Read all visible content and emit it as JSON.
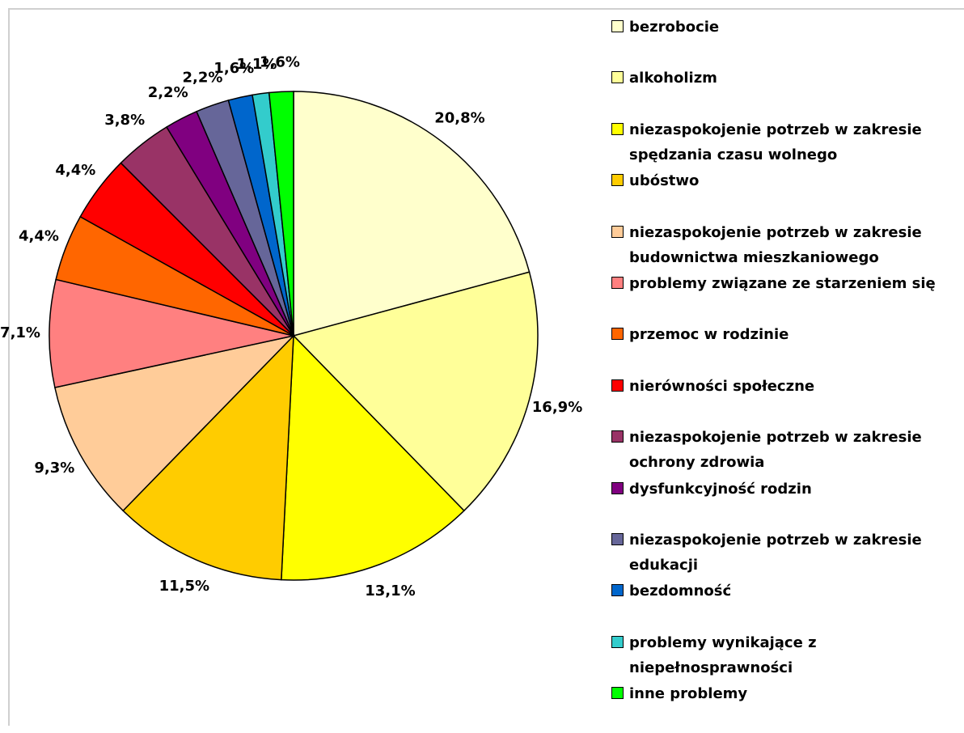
{
  "chart_data": {
    "type": "pie",
    "categories": [
      "bezrobocie",
      "alkoholizm",
      "niezaspokojenie potrzeb w zakresie spędzania czasu wolnego",
      "ubóstwo",
      "niezaspokojenie potrzeb w zakresie budownictwa mieszkaniowego",
      "problemy związane ze starzeniem się",
      "przemoc w rodzinie",
      "nierówności społeczne",
      "niezaspokojenie potrzeb w zakresie ochrony zdrowia",
      "dysfunkcyjność rodzin",
      "niezaspokojenie potrzeb w zakresie edukacji",
      "bezdomność",
      "problemy wynikające z niepełnosprawności",
      "inne problemy"
    ],
    "values": [
      20.8,
      16.9,
      13.1,
      11.5,
      9.3,
      7.1,
      4.4,
      4.4,
      3.8,
      2.2,
      2.2,
      1.6,
      1.1,
      1.6
    ],
    "value_labels": [
      "20,8%",
      "16,9%",
      "13,1%",
      "11,5%",
      "9,3%",
      "7,1%",
      "4,4%",
      "4,4%",
      "3,8%",
      "2,2%",
      "2,2%",
      "1,6%",
      "1,1%",
      "1,6%"
    ],
    "colors": [
      "#FFFFCC",
      "#FFFF99",
      "#FFFF00",
      "#FFCC00",
      "#FFCC99",
      "#FF8080",
      "#FF6600",
      "#FF0000",
      "#993366",
      "#800080",
      "#666699",
      "#0066CC",
      "#33CCCC",
      "#00FF00"
    ],
    "legend": "right"
  }
}
